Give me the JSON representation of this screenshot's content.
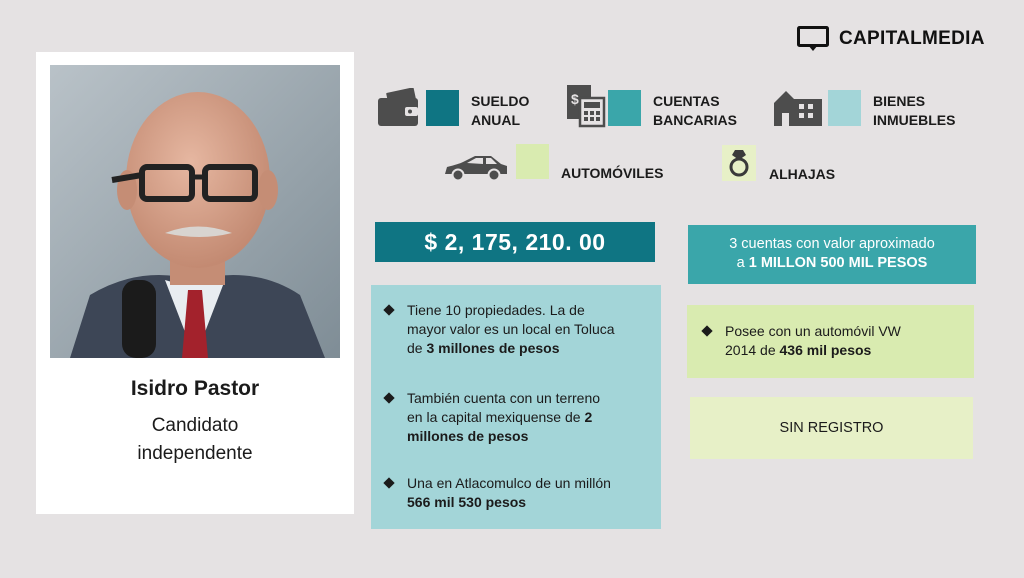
{
  "brand": {
    "name": "CAPITALMEDIA"
  },
  "candidate": {
    "name": "Isidro Pastor",
    "role_line1": "Candidato",
    "role_line2": "independente"
  },
  "legend": {
    "sueldo": {
      "label": "SUELDO\nANUAL",
      "color": "#0f7583",
      "icon": "wallet-icon"
    },
    "cuentas": {
      "label": "CUENTAS\nBANCARIAS",
      "color": "#3aa6aa",
      "icon": "calculator-icon"
    },
    "bienes": {
      "label": "BIENES\nINMUEBLES",
      "color": "#a3d5d8",
      "icon": "buildings-icon"
    },
    "autos": {
      "label": "AUTOMÓVILES",
      "color": "#d9ebb0",
      "icon": "car-icon"
    },
    "alhajas": {
      "label": "ALHAJAS",
      "color": "#e7f0c7",
      "icon": "ring-icon"
    }
  },
  "salary": {
    "value": "$ 2, 175,  210. 00"
  },
  "accounts": {
    "line1": "3 cuentas con valor aproximado",
    "line2_prefix": "a ",
    "line2_bold": "1 MILLON 500 MIL PESOS"
  },
  "properties": {
    "item1": {
      "line1": "Tiene 10 propiedades. La de",
      "line2": "mayor valor es un local en Toluca",
      "line3_prefix": "de ",
      "line3_bold": "3 millones  de pesos"
    },
    "item2": {
      "line1": "También cuenta con un terreno",
      "line2_prefix": "en la capital mexiquense de ",
      "line2_bold": "2",
      "line3_bold": "millones de pesos"
    },
    "item3": {
      "line1": "Una en Atlacomulco de un millón",
      "line2_bold": "566 mil 530 pesos"
    }
  },
  "car": {
    "line1": "Posee con un automóvil VW",
    "line2_prefix": "2014 de ",
    "line2_bold": "436 mil pesos"
  },
  "jewelry": {
    "text": "SIN REGISTRO"
  }
}
